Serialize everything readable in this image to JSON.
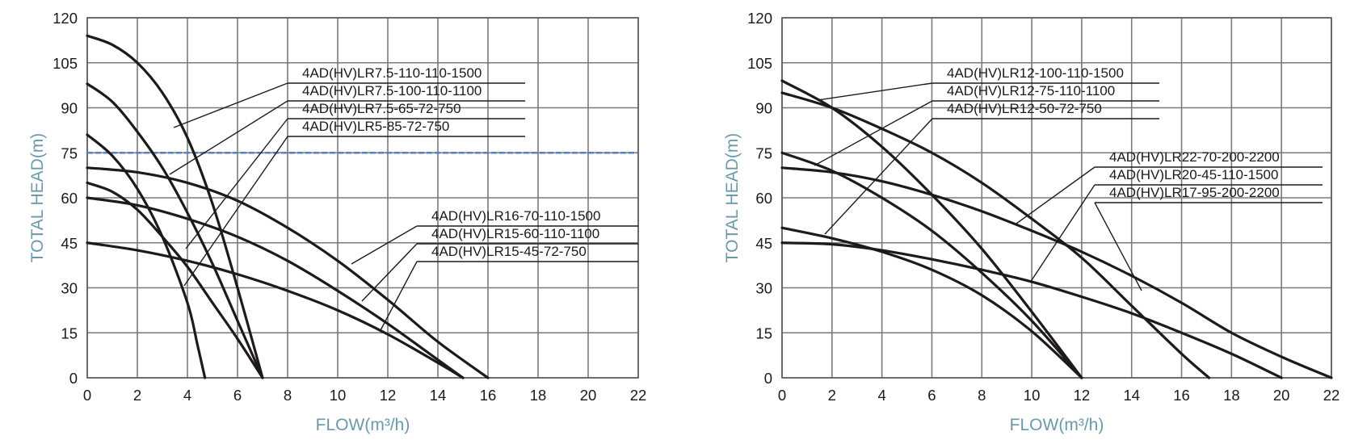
{
  "chart_data": [
    {
      "type": "line",
      "xlabel": "FLOW(m³/h)",
      "ylabel": "TOTAL HEAD(m)",
      "xlim": [
        0,
        22
      ],
      "ylim": [
        0,
        120
      ],
      "xticks": [
        0,
        2,
        4,
        6,
        8,
        10,
        12,
        14,
        16,
        18,
        20,
        22
      ],
      "yticks": [
        0,
        15,
        30,
        45,
        60,
        75,
        90,
        105,
        120
      ],
      "grid": true,
      "reference_line": {
        "y": 75,
        "color": "#5b7fc4",
        "style": "dashed"
      },
      "series": [
        {
          "name": "4AD(HV)LR7.5-110-110-1500",
          "x": [
            0,
            1,
            2,
            3,
            4,
            5,
            6,
            7
          ],
          "y": [
            114,
            111,
            105,
            95,
            80,
            58,
            30,
            0
          ]
        },
        {
          "name": "4AD(HV)LR7.5-100-110-1100",
          "x": [
            0,
            1,
            2,
            3,
            4,
            5,
            6,
            7
          ],
          "y": [
            98,
            92,
            82,
            70,
            55,
            38,
            19,
            0
          ]
        },
        {
          "name": "4AD(HV)LR7.5-65-72-750",
          "x": [
            0,
            1,
            2,
            3,
            4,
            5,
            6,
            7
          ],
          "y": [
            65,
            62,
            56,
            47,
            37,
            25,
            13,
            0
          ]
        },
        {
          "name": "4AD(HV)LR5-85-72-750",
          "x": [
            0,
            1,
            2,
            3,
            4,
            4.4,
            4.7
          ],
          "y": [
            81,
            74,
            63,
            47,
            25,
            11,
            0
          ]
        },
        {
          "name": "4AD(HV)LR16-70-110-1500",
          "x": [
            0,
            2,
            4,
            6,
            8,
            10,
            12,
            14,
            16
          ],
          "y": [
            70,
            68.5,
            65,
            59,
            50,
            39,
            26,
            12,
            0
          ]
        },
        {
          "name": "4AD(HV)LR15-60-110-1100",
          "x": [
            0,
            2,
            4,
            6,
            8,
            10,
            12,
            14,
            15
          ],
          "y": [
            60,
            57.5,
            53,
            47,
            39,
            29,
            18,
            6,
            0
          ]
        },
        {
          "name": "4AD(HV)LR15-45-72-750",
          "x": [
            0,
            2,
            4,
            6,
            8,
            10,
            12,
            14,
            15
          ],
          "y": [
            45,
            42.5,
            39,
            34.5,
            29,
            22.5,
            14.5,
            5,
            0
          ]
        }
      ],
      "labels": [
        "4AD(HV)LR7.5-110-110-1500",
        "4AD(HV)LR7.5-100-110-1100",
        "4AD(HV)LR7.5-65-72-750",
        "4AD(HV)LR5-85-72-750",
        "4AD(HV)LR16-70-110-1500",
        "4AD(HV)LR15-60-110-1100",
        "4AD(HV)LR15-45-72-750"
      ]
    },
    {
      "type": "line",
      "xlabel": "FLOW(m³/h)",
      "ylabel": "TOTAL HEAD(m)",
      "xlim": [
        0,
        22
      ],
      "ylim": [
        0,
        120
      ],
      "xticks": [
        0,
        2,
        4,
        6,
        8,
        10,
        12,
        14,
        16,
        18,
        20,
        22
      ],
      "yticks": [
        0,
        15,
        30,
        45,
        60,
        75,
        90,
        105,
        120
      ],
      "grid": true,
      "series": [
        {
          "name": "4AD(HV)LR12-100-110-1500",
          "x": [
            0,
            2,
            4,
            6,
            8,
            10,
            12
          ],
          "y": [
            99,
            90,
            77,
            61,
            43,
            22,
            0
          ]
        },
        {
          "name": "4AD(HV)LR12-75-110-1100",
          "x": [
            0,
            2,
            4,
            6,
            8,
            10,
            12
          ],
          "y": [
            75,
            69,
            60,
            49,
            35,
            19,
            0
          ]
        },
        {
          "name": "4AD(HV)LR12-50-72-750",
          "x": [
            0,
            2,
            4,
            6,
            8,
            10,
            12
          ],
          "y": [
            50,
            46.5,
            42,
            36,
            27.5,
            15.5,
            0
          ]
        },
        {
          "name": "4AD(HV)LR22-70-200-2200",
          "x": [
            0,
            2,
            4,
            6,
            8,
            10,
            12,
            14,
            16,
            18,
            20,
            22
          ],
          "y": [
            70,
            68.5,
            65.5,
            61,
            55.5,
            49,
            42,
            34,
            25,
            15,
            7,
            0
          ]
        },
        {
          "name": "4AD(HV)LR20-45-110-1500",
          "x": [
            0,
            2,
            4,
            6,
            8,
            10,
            12,
            14,
            16,
            18,
            20
          ],
          "y": [
            45,
            44.5,
            42.5,
            39.5,
            36,
            32,
            27,
            21.5,
            15,
            8,
            0
          ]
        },
        {
          "name": "4AD(HV)LR17-95-200-2200",
          "x": [
            0,
            2,
            4,
            6,
            8,
            10,
            12,
            14,
            16,
            17.1
          ],
          "y": [
            95,
            90,
            83,
            75,
            65,
            53,
            40,
            24,
            8,
            0
          ]
        }
      ],
      "labels": [
        "4AD(HV)LR12-100-110-1500",
        "4AD(HV)LR12-75-110-1100",
        "4AD(HV)LR12-50-72-750",
        "4AD(HV)LR22-70-200-2200",
        "4AD(HV)LR20-45-110-1500",
        "4AD(HV)LR17-95-200-2200"
      ]
    }
  ]
}
